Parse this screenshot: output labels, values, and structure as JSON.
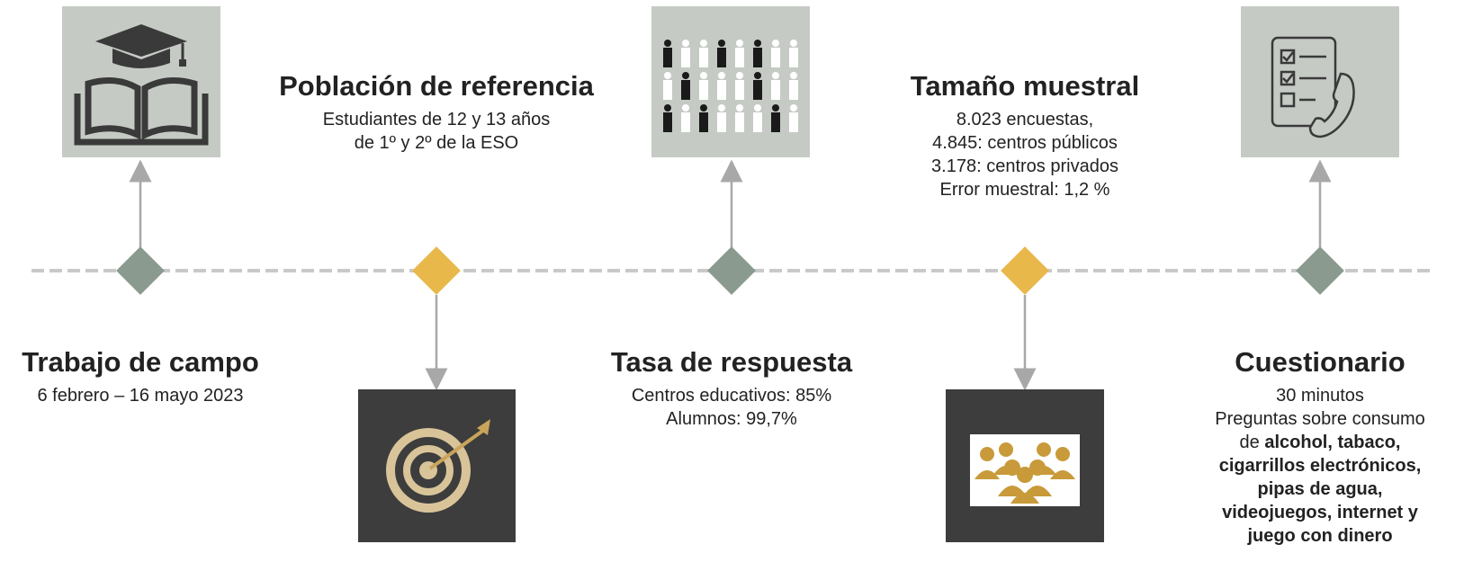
{
  "items": [
    {
      "title": "Trabajo de campo",
      "lines": [
        "6 febrero – 16 mayo 2023"
      ]
    },
    {
      "title": "Población de referencia",
      "lines": [
        "Estudiantes de 12 y 13 años",
        "de 1º y 2º de la ESO"
      ]
    },
    {
      "title": "Tasa de respuesta",
      "lines": [
        "Centros educativos: 85%",
        "Alumnos:  99,7%"
      ]
    },
    {
      "title": "Tamaño muestral",
      "lines": [
        "8.023 encuestas,",
        "4.845: centros públicos",
        "3.178: centros privados",
        "Error muestral: 1,2 %"
      ]
    },
    {
      "title": "Cuestionario",
      "lines": [
        "30 minutos",
        "Preguntas sobre consumo"
      ],
      "detail": {
        "prefix": "de",
        "emphasis": [
          "alcohol, tabaco,",
          "cigarrillos electrónicos,",
          "pipas de agua,",
          "videojuegos, internet y",
          "juego con dinero"
        ]
      }
    }
  ]
}
